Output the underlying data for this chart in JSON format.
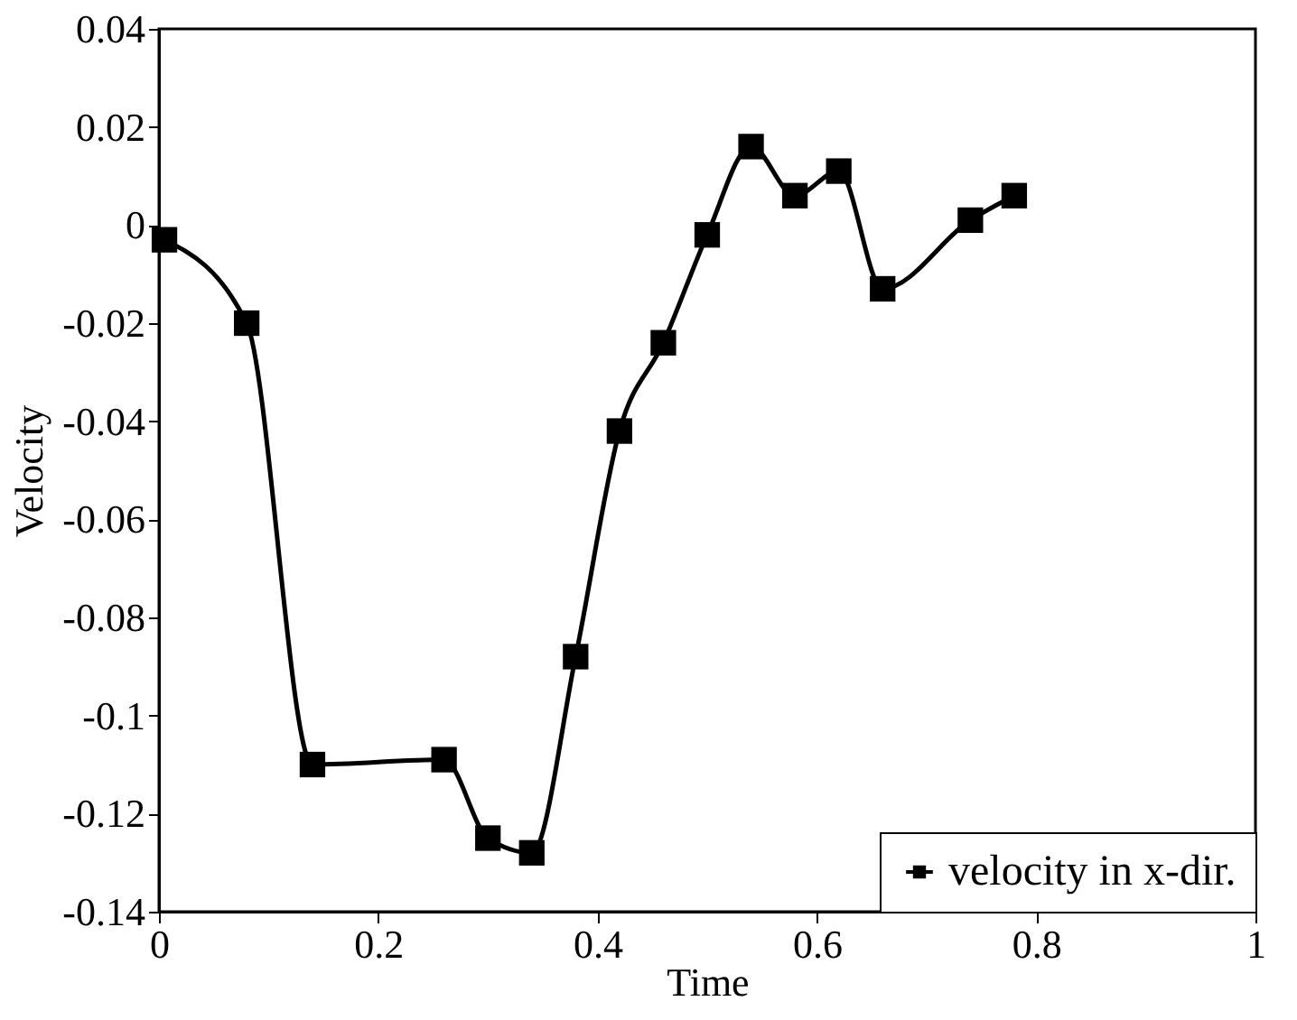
{
  "chart_data": {
    "type": "line",
    "xlabel": "Time",
    "ylabel": "Velocity",
    "x": [
      0.005,
      0.08,
      0.14,
      0.26,
      0.3,
      0.34,
      0.38,
      0.42,
      0.46,
      0.5,
      0.54,
      0.58,
      0.62,
      0.66,
      0.74,
      0.78
    ],
    "series": [
      {
        "name": "velocity in x-dir.",
        "color": "#000000",
        "values": [
          -0.003,
          -0.02,
          -0.11,
          -0.109,
          -0.125,
          -0.128,
          -0.088,
          -0.042,
          -0.024,
          -0.002,
          0.016,
          0.006,
          0.011,
          -0.013,
          0.001,
          0.006
        ]
      }
    ],
    "xlim": [
      0,
      1
    ],
    "xticks": [
      0,
      0.2,
      0.4,
      0.6,
      0.8,
      1
    ],
    "ylim": [
      -0.14,
      0.04
    ],
    "yticks": [
      -0.14,
      -0.12,
      -0.1,
      -0.08,
      -0.06,
      -0.04,
      -0.02,
      0,
      0.02,
      0.04
    ],
    "grid": false,
    "legend": "bottom right",
    "marker": "square",
    "line_style": "solid"
  }
}
